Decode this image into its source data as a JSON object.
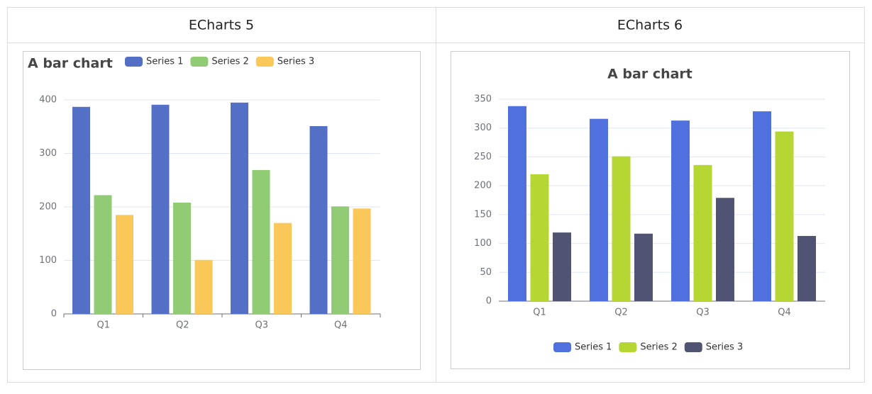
{
  "headers": [
    "ECharts 5",
    "ECharts 6"
  ],
  "chart_data": [
    {
      "type": "bar",
      "title": "A bar chart",
      "categories": [
        "Q1",
        "Q2",
        "Q3",
        "Q4"
      ],
      "series": [
        {
          "name": "Series 1",
          "color": "#5470c6",
          "values": [
            387,
            391,
            395,
            351
          ]
        },
        {
          "name": "Series 2",
          "color": "#91cc75",
          "values": [
            222,
            208,
            269,
            201
          ]
        },
        {
          "name": "Series 3",
          "color": "#fac858",
          "values": [
            185,
            101,
            170,
            197
          ]
        }
      ],
      "ylim": [
        0,
        400
      ],
      "yticks": [
        0,
        100,
        200,
        300,
        400
      ],
      "grid": true,
      "legend": "top"
    },
    {
      "type": "bar",
      "title": "A bar chart",
      "categories": [
        "Q1",
        "Q2",
        "Q3",
        "Q4"
      ],
      "series": [
        {
          "name": "Series 1",
          "color": "#5070dd",
          "values": [
            338,
            316,
            313,
            329
          ]
        },
        {
          "name": "Series 2",
          "color": "#b6d634",
          "values": [
            220,
            251,
            236,
            294
          ]
        },
        {
          "name": "Series 3",
          "color": "#505372",
          "values": [
            119,
            117,
            179,
            113
          ]
        }
      ],
      "ylim": [
        0,
        350
      ],
      "yticks": [
        0,
        50,
        100,
        150,
        200,
        250,
        300,
        350
      ],
      "grid": true,
      "legend": "bottom"
    }
  ]
}
